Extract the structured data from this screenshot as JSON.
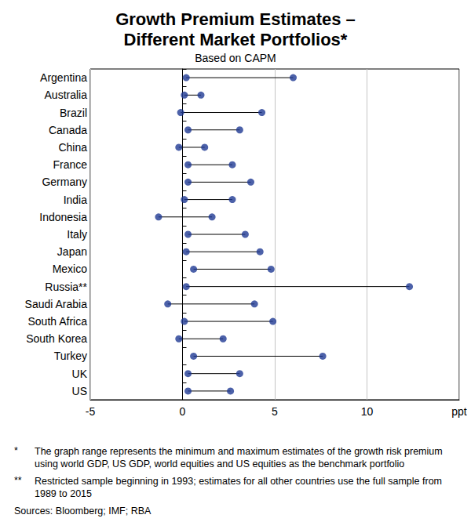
{
  "chart_data": {
    "type": "dumbbell",
    "orientation": "horizontal",
    "title": "Growth Premium Estimates –\nDifferent Market Portfolios*",
    "subtitle": "Based on CAPM",
    "categories": [
      "Argentina",
      "Australia",
      "Brazil",
      "Canada",
      "China",
      "France",
      "Germany",
      "India",
      "Indonesia",
      "Italy",
      "Japan",
      "Mexico",
      "Russia**",
      "Saudi Arabia",
      "South Africa",
      "South Korea",
      "Turkey",
      "UK",
      "US"
    ],
    "series": [
      {
        "color": "#1f3a93",
        "marker": "circle",
        "values": [
          0.2,
          0.1,
          -0.1,
          0.3,
          -0.2,
          0.3,
          0.3,
          0.1,
          -1.3,
          0.3,
          0.2,
          0.6,
          0.2,
          -0.8,
          0.1,
          -0.2,
          0.6,
          0.3,
          0.3
        ]
      },
      {
        "color": "#1f3a93",
        "marker": "circle",
        "values": [
          6.0,
          1.0,
          4.3,
          3.1,
          1.2,
          2.7,
          3.7,
          2.7,
          1.6,
          3.4,
          4.2,
          4.8,
          12.3,
          3.9,
          4.9,
          2.2,
          7.6,
          3.1,
          2.6
        ]
      }
    ],
    "xlim": [
      -5,
      15
    ],
    "xticks": [
      -5,
      0,
      5,
      10,
      {
        "value": 15,
        "label": "ppt"
      }
    ],
    "grid": true,
    "notes": [
      {
        "mark": "*",
        "text": "The graph range represents the minimum and maximum estimates of the growth risk premium using world GDP, US GDP, world equities and US equities as the benchmark portfolio"
      },
      {
        "mark": "**",
        "text": "Restricted sample beginning in 1993; estimates for all other countries use the full sample from 1989 to 2015"
      }
    ],
    "sources": "Sources: Bloomberg; IMF; RBA"
  }
}
